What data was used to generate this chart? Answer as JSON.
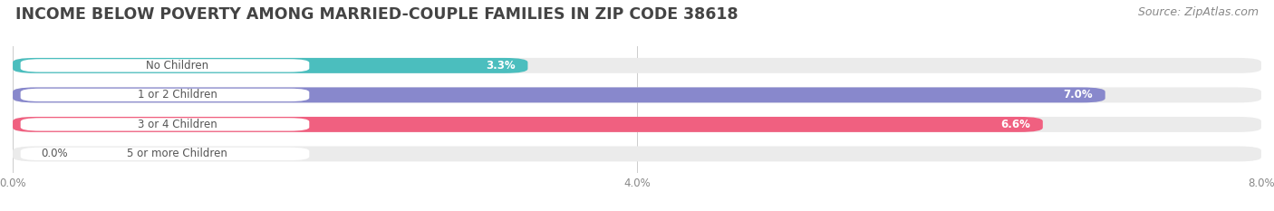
{
  "title": "INCOME BELOW POVERTY AMONG MARRIED-COUPLE FAMILIES IN ZIP CODE 38618",
  "source": "Source: ZipAtlas.com",
  "categories": [
    "No Children",
    "1 or 2 Children",
    "3 or 4 Children",
    "5 or more Children"
  ],
  "values": [
    3.3,
    7.0,
    6.6,
    0.0
  ],
  "bar_colors": [
    "#4BBEBE",
    "#8888CC",
    "#F06080",
    "#F5C89A"
  ],
  "xlim": [
    0,
    8.0
  ],
  "xticks": [
    0.0,
    4.0,
    8.0
  ],
  "xtick_labels": [
    "0.0%",
    "4.0%",
    "8.0%"
  ],
  "background_color": "#ffffff",
  "bar_bg_color": "#ebebeb",
  "title_fontsize": 12.5,
  "source_fontsize": 9,
  "bar_height": 0.52,
  "value_labels": [
    "3.3%",
    "7.0%",
    "6.6%",
    "0.0%"
  ],
  "label_text_color": "#555555",
  "title_color": "#444444"
}
